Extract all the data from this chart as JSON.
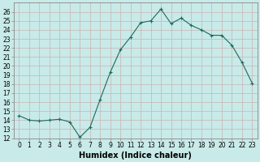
{
  "xlabel": "Humidex (Indice chaleur)",
  "x": [
    0,
    1,
    2,
    3,
    4,
    5,
    6,
    7,
    8,
    9,
    10,
    11,
    12,
    13,
    14,
    15,
    16,
    17,
    18,
    19,
    20,
    21,
    22,
    23
  ],
  "y": [
    14.5,
    14.0,
    13.9,
    14.0,
    14.1,
    13.8,
    12.1,
    13.2,
    16.3,
    19.3,
    21.8,
    23.2,
    24.8,
    25.0,
    26.3,
    24.7,
    25.3,
    24.5,
    24.0,
    23.4,
    23.4,
    22.3,
    20.4,
    18.1
  ],
  "line_color": "#1a6b60",
  "marker": "+",
  "marker_size": 3,
  "marker_linewidth": 0.8,
  "linewidth": 0.8,
  "bg_color": "#c8eae8",
  "grid_color": "#c8b4b4",
  "ylim": [
    12,
    27
  ],
  "yticks": [
    12,
    13,
    14,
    15,
    16,
    17,
    18,
    19,
    20,
    21,
    22,
    23,
    24,
    25,
    26
  ],
  "xticks": [
    0,
    1,
    2,
    3,
    4,
    5,
    6,
    7,
    8,
    9,
    10,
    11,
    12,
    13,
    14,
    15,
    16,
    17,
    18,
    19,
    20,
    21,
    22,
    23
  ],
  "tick_fontsize": 5.5,
  "xlabel_fontsize": 7,
  "spine_color": "#888888"
}
